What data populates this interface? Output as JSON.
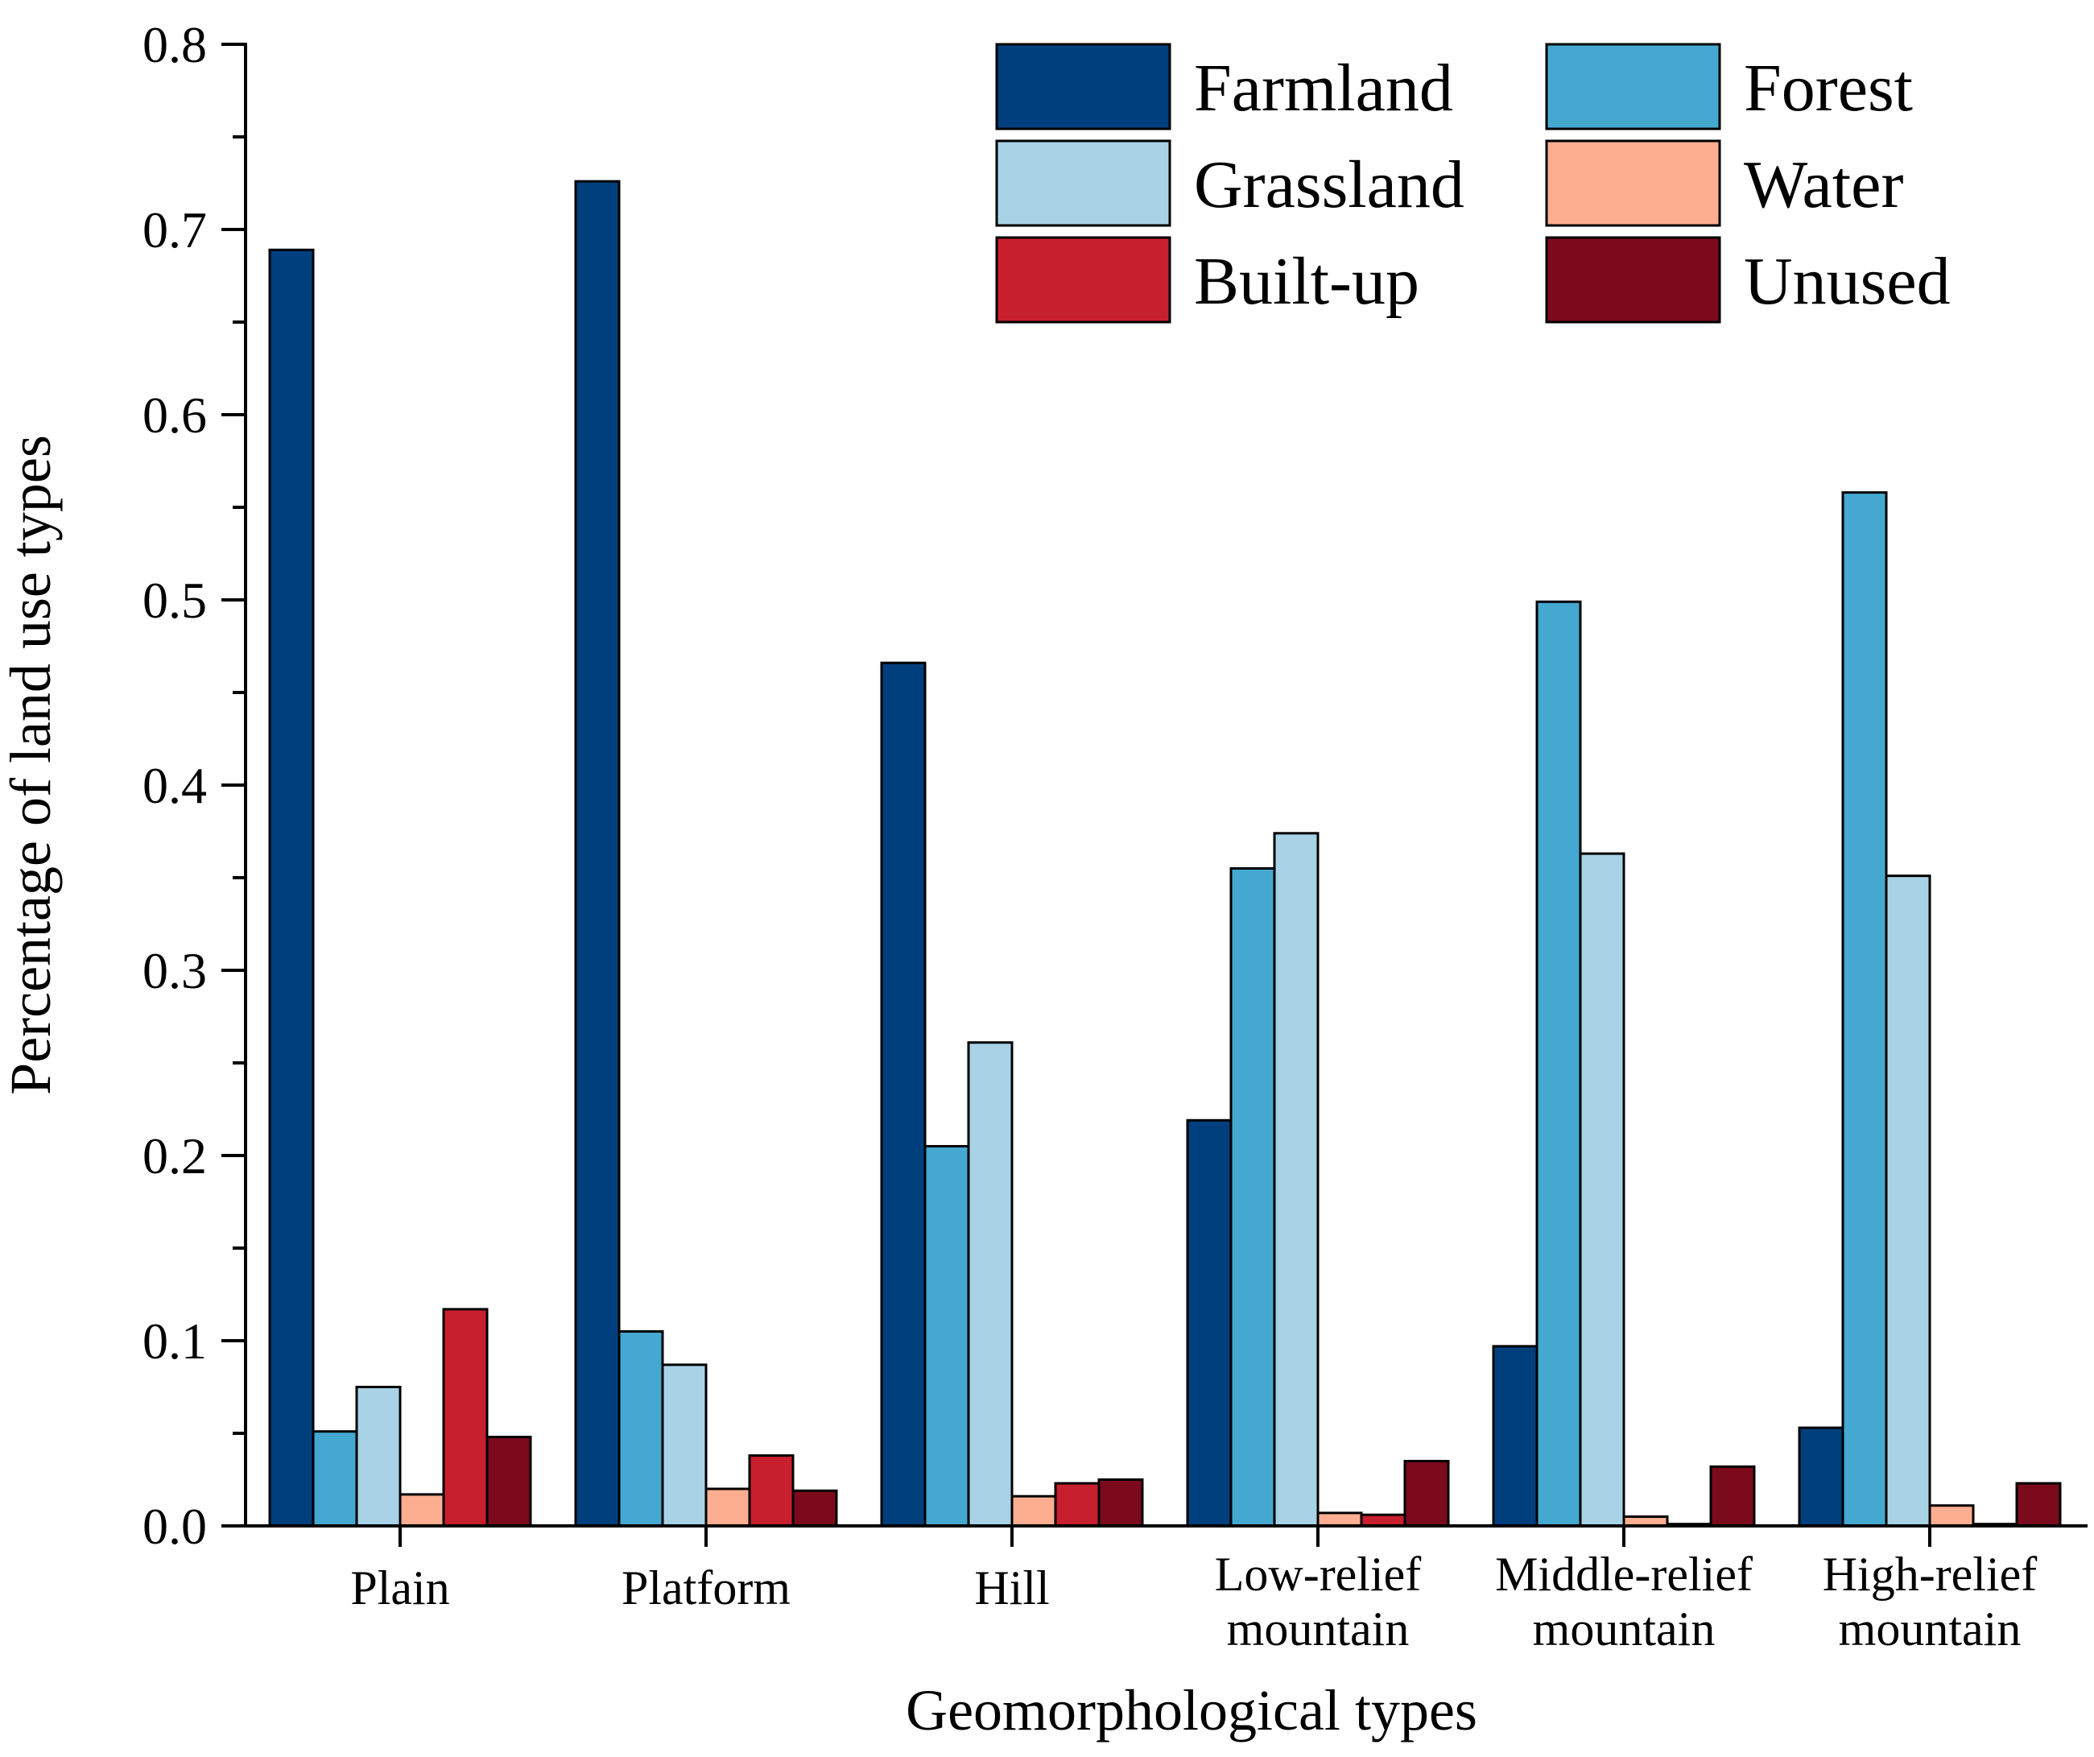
{
  "chart_data": {
    "type": "bar",
    "title": "",
    "xlabel": "Geomorphological types",
    "ylabel": "Percentage of land use types",
    "ylim": [
      0,
      0.8
    ],
    "yticks": [
      "0.0",
      "0.1",
      "0.2",
      "0.3",
      "0.4",
      "0.5",
      "0.6",
      "0.7",
      "0.8"
    ],
    "legend_position": "top-right",
    "categories": [
      [
        "Plain"
      ],
      [
        "Platform"
      ],
      [
        "Hill"
      ],
      [
        "Low-relief",
        "mountain"
      ],
      [
        "Middle-relief",
        "mountain"
      ],
      [
        "High-relief",
        "mountain"
      ]
    ],
    "series": [
      {
        "name": "Farmland",
        "color": "#003f7d",
        "values": [
          0.689,
          0.726,
          0.466,
          0.219,
          0.097,
          0.053
        ]
      },
      {
        "name": "Forest",
        "color": "#45a8d1",
        "values": [
          0.051,
          0.105,
          0.205,
          0.355,
          0.499,
          0.558
        ]
      },
      {
        "name": "Grassland",
        "color": "#a8d3e6",
        "values": [
          0.075,
          0.087,
          0.261,
          0.374,
          0.363,
          0.351
        ]
      },
      {
        "name": "Water",
        "color": "#fdae91",
        "values": [
          0.017,
          0.02,
          0.016,
          0.007,
          0.005,
          0.011
        ]
      },
      {
        "name": "Built-up",
        "color": "#c81f2e",
        "values": [
          0.117,
          0.038,
          0.023,
          0.006,
          0.001,
          0.001
        ]
      },
      {
        "name": "Unused",
        "color": "#7a0a1c",
        "values": [
          0.048,
          0.019,
          0.025,
          0.035,
          0.032,
          0.023
        ]
      }
    ]
  }
}
